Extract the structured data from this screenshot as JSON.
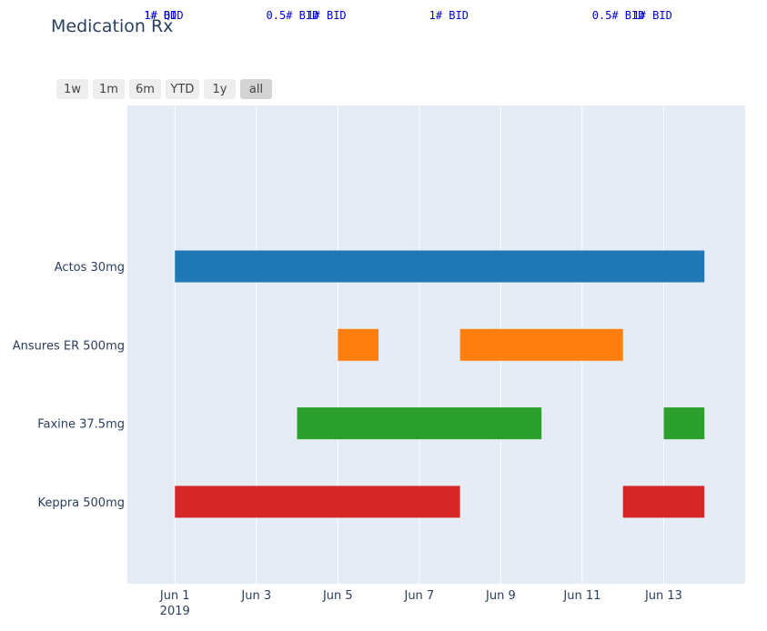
{
  "chart_data": {
    "type": "gantt",
    "title": "Medication Rx",
    "range_selector": {
      "buttons": [
        "1w",
        "1m",
        "6m",
        "YTD",
        "1y",
        "all"
      ],
      "active": "all"
    },
    "x_axis": {
      "type": "date",
      "range": [
        "2019-05-30T20:00",
        "2019-06-15T00:00"
      ],
      "ticks": [
        {
          "value": "2019-06-01",
          "label": "Jun 1",
          "sublabel": "2019"
        },
        {
          "value": "2019-06-03",
          "label": "Jun 3"
        },
        {
          "value": "2019-06-05",
          "label": "Jun 5"
        },
        {
          "value": "2019-06-07",
          "label": "Jun 7"
        },
        {
          "value": "2019-06-09",
          "label": "Jun 9"
        },
        {
          "value": "2019-06-11",
          "label": "Jun 11"
        },
        {
          "value": "2019-06-13",
          "label": "Jun 13"
        }
      ]
    },
    "categories": [
      "Actos 30mg",
      "Ansures ER 500mg",
      "Faxine 37.5mg",
      "Keppra 500mg"
    ],
    "tasks": [
      {
        "category": "Actos 30mg",
        "start": "2019-06-01",
        "end": "2019-06-14",
        "color": "#1f77b4"
      },
      {
        "category": "Ansures ER 500mg",
        "start": "2019-06-05",
        "end": "2019-06-06",
        "color": "#ff7f0e"
      },
      {
        "category": "Ansures ER 500mg",
        "start": "2019-06-08",
        "end": "2019-06-12",
        "color": "#ff7f0e"
      },
      {
        "category": "Faxine 37.5mg",
        "start": "2019-06-04",
        "end": "2019-06-10",
        "color": "#2ca02c"
      },
      {
        "category": "Faxine 37.5mg",
        "start": "2019-06-13",
        "end": "2019-06-14",
        "color": "#2ca02c"
      },
      {
        "category": "Keppra 500mg",
        "start": "2019-06-01",
        "end": "2019-06-08",
        "color": "#d62728"
      },
      {
        "category": "Keppra 500mg",
        "start": "2019-06-12",
        "end": "2019-06-14",
        "color": "#d62728"
      }
    ],
    "annotations": [
      {
        "x": "2019-06-01",
        "text": "1# BID"
      },
      {
        "x": "2019-06-01",
        "text": "1# QD"
      },
      {
        "x": "2019-06-04",
        "text": "0.5# BID"
      },
      {
        "x": "2019-06-05",
        "text": "1# BID"
      },
      {
        "x": "2019-06-08",
        "text": "1# BID"
      },
      {
        "x": "2019-06-12",
        "text": "0.5# BID"
      },
      {
        "x": "2019-06-13",
        "text": "1# BID"
      }
    ],
    "grid": true,
    "colors": {
      "plot_bg": "#e5ecf6",
      "grid": "#ffffff",
      "text": "#2a3f5f",
      "annotation": "#0000cc"
    }
  }
}
